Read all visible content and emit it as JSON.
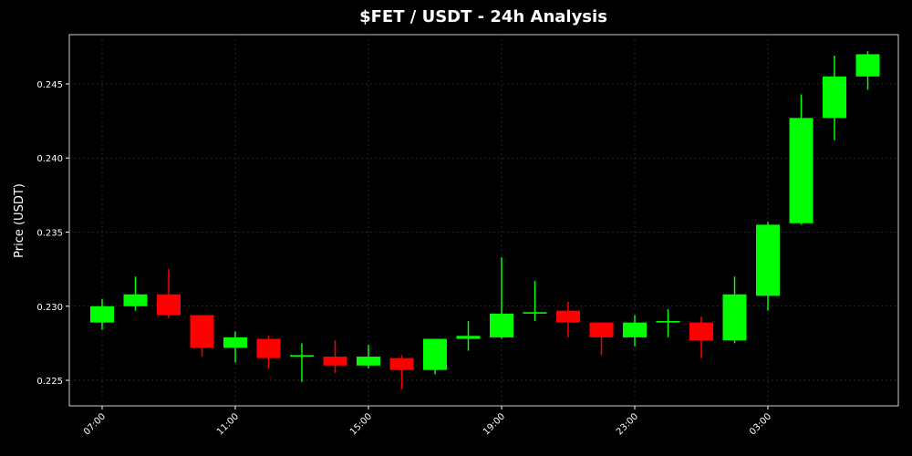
{
  "chart_data": {
    "type": "candlestick",
    "title": "$FET / USDT - 24h Analysis",
    "ylabel": "Price (USDT)",
    "categories": [
      "07:00",
      null,
      null,
      null,
      "11:00",
      null,
      null,
      null,
      "15:00",
      null,
      null,
      null,
      "19:00",
      null,
      null,
      null,
      "23:00",
      null,
      null,
      null,
      "03:00",
      null,
      null,
      null
    ],
    "open": [
      0.2289,
      0.23,
      0.2308,
      0.2294,
      0.2272,
      0.2278,
      0.2266,
      0.2266,
      0.226,
      0.2265,
      0.2257,
      0.2278,
      0.2279,
      0.2295,
      0.2297,
      0.2289,
      0.2279,
      0.2289,
      0.2289,
      0.2277,
      0.2307,
      0.2356,
      0.2427,
      0.2455
    ],
    "high": [
      0.2305,
      0.232,
      0.2325,
      0.2294,
      0.2283,
      0.228,
      0.2275,
      0.2277,
      0.2274,
      0.2267,
      0.2278,
      0.229,
      0.2333,
      0.2317,
      0.2303,
      0.2289,
      0.2294,
      0.2298,
      0.2293,
      0.232,
      0.2357,
      0.2443,
      0.2469,
      0.2472
    ],
    "low": [
      0.2284,
      0.2297,
      0.2292,
      0.2266,
      0.2262,
      0.2258,
      0.2249,
      0.2255,
      0.2258,
      0.2244,
      0.2254,
      0.227,
      0.2278,
      0.229,
      0.2279,
      0.2267,
      0.2273,
      0.2279,
      0.2265,
      0.2275,
      0.2297,
      0.2355,
      0.2412,
      0.2446
    ],
    "close": [
      0.23,
      0.2308,
      0.2294,
      0.2272,
      0.2279,
      0.2265,
      0.2267,
      0.226,
      0.2266,
      0.2257,
      0.2278,
      0.228,
      0.2295,
      0.2296,
      0.2289,
      0.2279,
      0.2289,
      0.229,
      0.2277,
      0.2308,
      0.2355,
      0.2427,
      0.2455,
      0.247
    ],
    "up_color": "#00ff00",
    "down_color": "#ff0000",
    "ylim": [
      0.22328,
      0.24832
    ],
    "yticks": [
      0.225,
      {
        "value": 0.23,
        "label": "0.230"
      },
      0.235,
      {
        "value": 0.24,
        "label": "0.240"
      },
      0.245
    ],
    "grid": true
  }
}
